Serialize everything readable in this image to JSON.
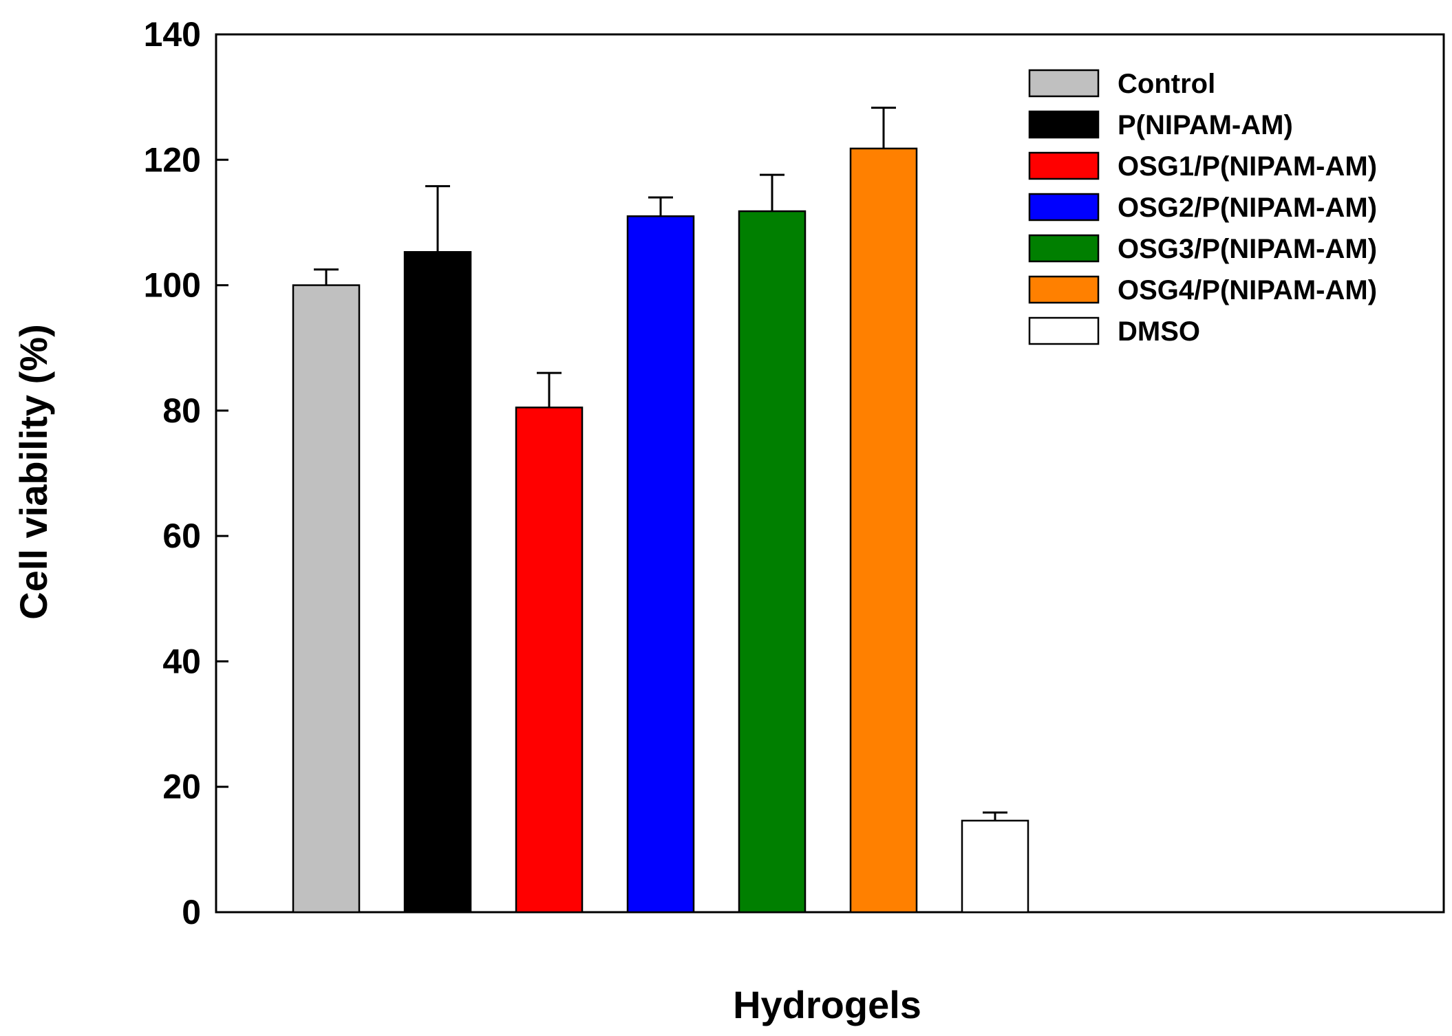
{
  "chart_data": {
    "type": "bar",
    "title": "",
    "xlabel": "Hydrogels",
    "ylabel": "Cell viability (%)",
    "ylim": [
      0,
      140
    ],
    "yticks": [
      0,
      20,
      40,
      60,
      80,
      100,
      120,
      140
    ],
    "grid": false,
    "legend_position": "top-right",
    "series": [
      {
        "name": "Control",
        "value": 100,
        "error": 2.5,
        "color": "#c0c0c0"
      },
      {
        "name": "P(NIPAM-AM)",
        "value": 105.3,
        "error": 10.5,
        "color": "#000000"
      },
      {
        "name": "OSG1/P(NIPAM-AM)",
        "value": 80.5,
        "error": 5.5,
        "color": "#ff0000"
      },
      {
        "name": "OSG2/P(NIPAM-AM)",
        "value": 111,
        "error": 3,
        "color": "#0000ff"
      },
      {
        "name": "OSG3/P(NIPAM-AM)",
        "value": 111.8,
        "error": 5.8,
        "color": "#007f00"
      },
      {
        "name": "OSG4/P(NIPAM-AM)",
        "value": 121.8,
        "error": 6.5,
        "color": "#ff8000"
      },
      {
        "name": "DMSO",
        "value": 14.6,
        "error": 1.3,
        "color": "#ffffff"
      }
    ]
  }
}
